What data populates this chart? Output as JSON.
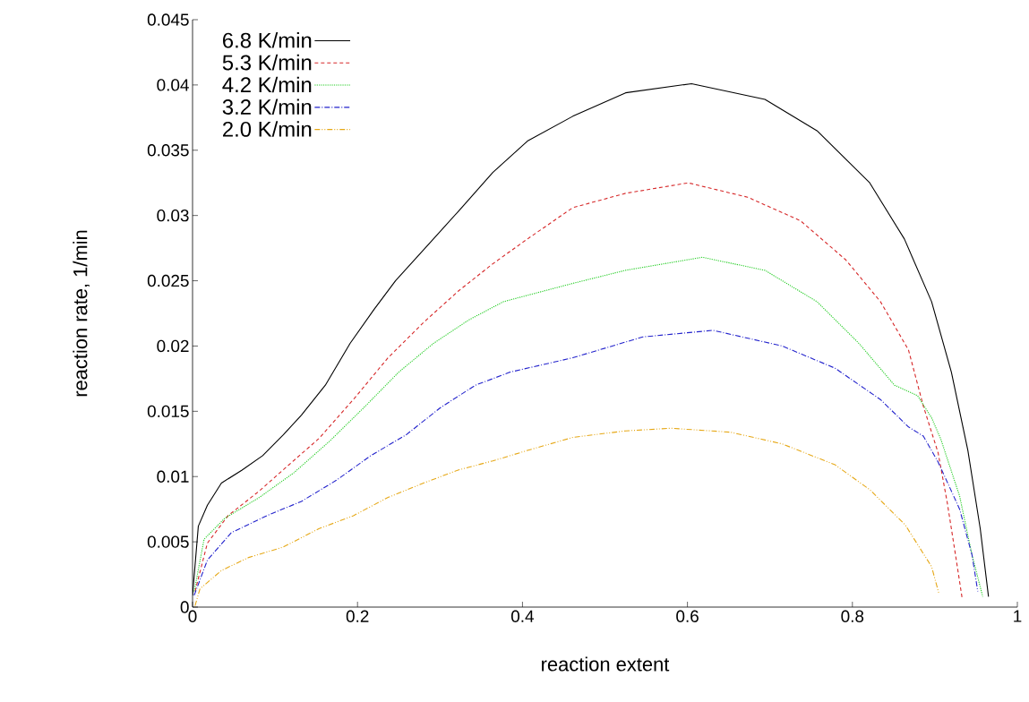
{
  "chart_data": {
    "type": "line",
    "xlabel": "reaction extent",
    "ylabel": "reaction rate, 1/min",
    "xlim": [
      0,
      1
    ],
    "ylim": [
      0,
      0.045
    ],
    "xticks": [
      0,
      0.2,
      0.4,
      0.6,
      0.8,
      1
    ],
    "yticks": [
      0,
      0.005,
      0.01,
      0.015,
      0.02,
      0.025,
      0.03,
      0.035,
      0.04,
      0.045
    ],
    "grid": false,
    "legend": "top left",
    "series": [
      {
        "name": "6.8 K/min",
        "color": "#000000",
        "line_style": "solid",
        "x": [
          0,
          0.007,
          0.018,
          0.035,
          0.06,
          0.085,
          0.11,
          0.132,
          0.161,
          0.191,
          0.22,
          0.246,
          0.292,
          0.322,
          0.364,
          0.406,
          0.461,
          0.525,
          0.605,
          0.694,
          0.757,
          0.821,
          0.863,
          0.896,
          0.92,
          0.94,
          0.955,
          0.965
        ],
        "values": [
          0.0009,
          0.0062,
          0.0078,
          0.0095,
          0.0105,
          0.0116,
          0.0132,
          0.0147,
          0.017,
          0.0202,
          0.0228,
          0.025,
          0.0282,
          0.0303,
          0.0333,
          0.0357,
          0.0376,
          0.0394,
          0.0401,
          0.0389,
          0.0365,
          0.0325,
          0.0282,
          0.0234,
          0.018,
          0.012,
          0.006,
          0.0008
        ]
      },
      {
        "name": "5.3 K/min",
        "color": "#d62728",
        "line_style": "dashed",
        "x": [
          0.003,
          0.018,
          0.043,
          0.081,
          0.115,
          0.153,
          0.195,
          0.237,
          0.28,
          0.322,
          0.364,
          0.406,
          0.461,
          0.525,
          0.601,
          0.673,
          0.737,
          0.792,
          0.834,
          0.868,
          0.886,
          0.904,
          0.915,
          0.925,
          0.933
        ],
        "values": [
          0.0012,
          0.0049,
          0.007,
          0.0089,
          0.0108,
          0.0129,
          0.0159,
          0.0191,
          0.0218,
          0.0242,
          0.0263,
          0.0282,
          0.0306,
          0.0317,
          0.0325,
          0.0314,
          0.0296,
          0.0266,
          0.0234,
          0.0197,
          0.0154,
          0.0118,
          0.008,
          0.004,
          0.0007
        ]
      },
      {
        "name": "4.2 K/min",
        "color": "#22cc22",
        "line_style": "dotted",
        "x": [
          0.002,
          0.014,
          0.039,
          0.081,
          0.123,
          0.166,
          0.208,
          0.25,
          0.292,
          0.335,
          0.377,
          0.461,
          0.525,
          0.618,
          0.694,
          0.757,
          0.808,
          0.851,
          0.879,
          0.896,
          0.907,
          0.93,
          0.945,
          0.958
        ],
        "values": [
          0.0012,
          0.0052,
          0.0068,
          0.0084,
          0.0103,
          0.0127,
          0.0153,
          0.018,
          0.0202,
          0.022,
          0.0234,
          0.0248,
          0.0258,
          0.0268,
          0.0258,
          0.0234,
          0.0202,
          0.017,
          0.0162,
          0.0145,
          0.0129,
          0.0085,
          0.004,
          0.0008
        ]
      },
      {
        "name": "3.2 K/min",
        "color": "#2222cc",
        "line_style": "dashdot",
        "x": [
          0.002,
          0.018,
          0.047,
          0.09,
          0.132,
          0.174,
          0.216,
          0.259,
          0.301,
          0.343,
          0.385,
          0.461,
          0.546,
          0.631,
          0.715,
          0.779,
          0.834,
          0.868,
          0.886,
          0.904,
          0.93,
          0.945,
          0.952
        ],
        "values": [
          0.0009,
          0.0036,
          0.0057,
          0.007,
          0.0081,
          0.0097,
          0.0116,
          0.0132,
          0.0153,
          0.017,
          0.018,
          0.0191,
          0.0207,
          0.0212,
          0.02,
          0.0183,
          0.0159,
          0.0138,
          0.0131,
          0.0111,
          0.0075,
          0.004,
          0.0012
        ]
      },
      {
        "name": "2.0 K/min",
        "color": "#e6a817",
        "line_style": "dashdotdot",
        "x": [
          0.003,
          0.009,
          0.035,
          0.068,
          0.11,
          0.153,
          0.195,
          0.237,
          0.28,
          0.322,
          0.364,
          0.406,
          0.461,
          0.525,
          0.58,
          0.652,
          0.715,
          0.779,
          0.821,
          0.864,
          0.896,
          0.905
        ],
        "values": [
          0.0001,
          0.0014,
          0.0028,
          0.0038,
          0.0046,
          0.006,
          0.007,
          0.0084,
          0.0095,
          0.0105,
          0.0112,
          0.012,
          0.013,
          0.0135,
          0.0137,
          0.0134,
          0.0125,
          0.0109,
          0.009,
          0.0063,
          0.0031,
          0.001
        ]
      }
    ]
  }
}
